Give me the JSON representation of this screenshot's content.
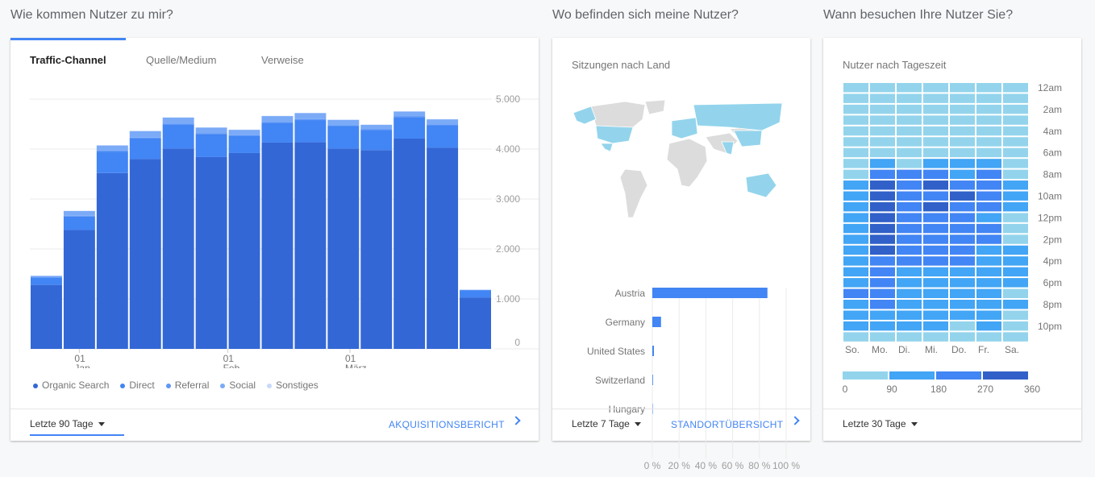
{
  "sections": {
    "acquisition": "Wie kommen Nutzer zu mir?",
    "location": "Wo befinden sich meine Nutzer?",
    "time": "Wann besuchen Ihre Nutzer Sie?"
  },
  "acquisition_card": {
    "tabs": [
      {
        "label": "Traffic-Channel",
        "active": true
      },
      {
        "label": "Quelle/Medium",
        "active": false
      },
      {
        "label": "Verweise",
        "active": false
      }
    ],
    "date_range": "Letzte 90 Tage",
    "report_link": "AKQUISITIONSBERICHT"
  },
  "location_card": {
    "title": "Sitzungen nach Land",
    "date_range": "Letzte 7 Tage",
    "report_link": "STANDORTÜBERSICHT",
    "map_colors": {
      "active": "#93d4ec",
      "inactive": "#dcdcdc"
    }
  },
  "time_card": {
    "title": "Nutzer nach Tageszeit",
    "date_range": "Letzte 30 Tage"
  },
  "chart_data": [
    {
      "type": "bar",
      "stacked": true,
      "ylim": [
        0,
        5000
      ],
      "yticks": [
        "0",
        "1.000",
        "2.000",
        "3.000",
        "4.000",
        "5.000"
      ],
      "xtick_labels": [
        {
          "day": "01",
          "month": "Jan.",
          "bar_index": 1.5
        },
        {
          "day": "01",
          "month": "Feb.",
          "bar_index": 6
        },
        {
          "day": "01",
          "month": "März",
          "bar_index": 9.7
        }
      ],
      "grid": true,
      "legend": "bottom",
      "colors": [
        "#3367d6",
        "#4285f4",
        "#5e97f6",
        "#7baaf7",
        "#c6dafc"
      ],
      "series": [
        {
          "name": "Organic Search",
          "values": [
            1280,
            2380,
            3520,
            3800,
            4010,
            3840,
            3920,
            4130,
            4140,
            4010,
            3980,
            4210,
            4030,
            1030
          ]
        },
        {
          "name": "Direct",
          "values": [
            145,
            270,
            430,
            410,
            485,
            460,
            345,
            400,
            440,
            450,
            400,
            430,
            445,
            140
          ]
        },
        {
          "name": "Referral",
          "values": [
            20,
            15,
            20,
            20,
            15,
            20,
            15,
            15,
            20,
            20,
            15,
            20,
            20,
            10
          ]
        },
        {
          "name": "Social",
          "values": [
            15,
            95,
            100,
            130,
            120,
            110,
            105,
            115,
            120,
            105,
            90,
            90,
            100,
            5
          ]
        },
        {
          "name": "Sonstiges",
          "values": [
            5,
            5,
            10,
            5,
            5,
            5,
            5,
            5,
            5,
            5,
            5,
            5,
            5,
            0
          ]
        }
      ]
    },
    {
      "type": "bar",
      "orientation": "horizontal",
      "categories": [
        "Austria",
        "Germany",
        "United States",
        "Switzerland",
        "Hungary"
      ],
      "values": [
        86,
        6.5,
        1.2,
        0.5,
        0.1
      ],
      "xlim": [
        0,
        100
      ],
      "xticks": [
        "0 %",
        "20 %",
        "40 %",
        "60 %",
        "80 %",
        "100 %"
      ],
      "color": "#4285f4"
    },
    {
      "type": "heatmap",
      "columns": [
        "So.",
        "Mo.",
        "Di.",
        "Mi.",
        "Do.",
        "Fr.",
        "Sa."
      ],
      "row_labels": [
        "12am",
        "2am",
        "4am",
        "6am",
        "8am",
        "10am",
        "12pm",
        "2pm",
        "4pm",
        "6pm",
        "8pm",
        "10pm"
      ],
      "scale_ticks": [
        "0",
        "90",
        "180",
        "270",
        "360"
      ],
      "scale_colors": [
        "#93d4ec",
        "#42a5f5",
        "#4285f4",
        "#3060c8"
      ],
      "levels_by_hour": [
        [
          0,
          0,
          0,
          0,
          0,
          0,
          0
        ],
        [
          0,
          0,
          0,
          0,
          0,
          0,
          0
        ],
        [
          0,
          0,
          0,
          0,
          0,
          0,
          0
        ],
        [
          0,
          0,
          0,
          0,
          0,
          0,
          0
        ],
        [
          0,
          0,
          0,
          0,
          0,
          0,
          0
        ],
        [
          0,
          0,
          0,
          0,
          0,
          0,
          0
        ],
        [
          0,
          0,
          0,
          0,
          0,
          0,
          0
        ],
        [
          0,
          1,
          0,
          1,
          1,
          1,
          0
        ],
        [
          0,
          2,
          2,
          2,
          1,
          2,
          0
        ],
        [
          1,
          3,
          2,
          3,
          2,
          2,
          1
        ],
        [
          1,
          3,
          2,
          2,
          3,
          2,
          1
        ],
        [
          1,
          3,
          2,
          3,
          2,
          2,
          1
        ],
        [
          1,
          3,
          2,
          2,
          2,
          1,
          0
        ],
        [
          1,
          3,
          2,
          2,
          2,
          2,
          0
        ],
        [
          1,
          3,
          2,
          2,
          2,
          2,
          0
        ],
        [
          1,
          3,
          2,
          2,
          2,
          1,
          1
        ],
        [
          1,
          2,
          2,
          2,
          2,
          1,
          1
        ],
        [
          1,
          2,
          1,
          1,
          1,
          1,
          1
        ],
        [
          1,
          2,
          1,
          1,
          1,
          1,
          1
        ],
        [
          2,
          2,
          1,
          1,
          1,
          1,
          0
        ],
        [
          1,
          2,
          1,
          1,
          1,
          1,
          1
        ],
        [
          1,
          1,
          1,
          1,
          1,
          1,
          0
        ],
        [
          1,
          1,
          1,
          1,
          0,
          1,
          0
        ],
        [
          0,
          0,
          0,
          0,
          0,
          0,
          0
        ]
      ]
    }
  ]
}
